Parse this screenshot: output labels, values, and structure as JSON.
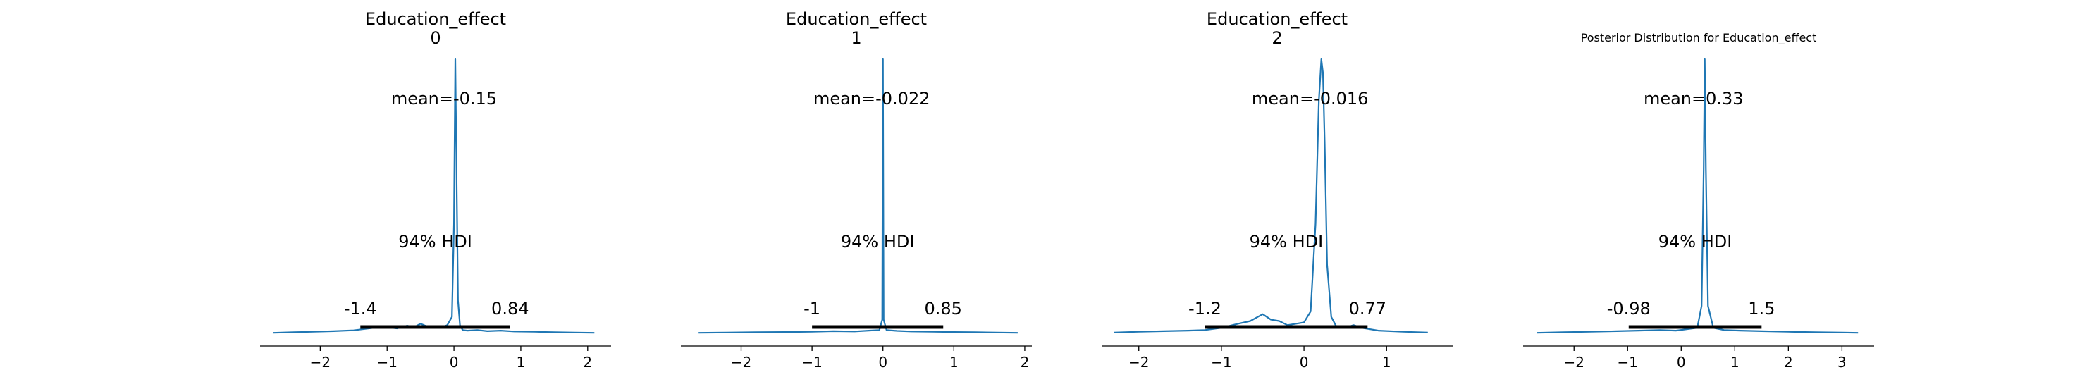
{
  "chart_data": [
    {
      "type": "line",
      "title_lines": [
        "Education_effect",
        "0"
      ],
      "mean_label": "mean=-0.15",
      "hdi_label": "94% HDI",
      "hdi_low_label": "-1.4",
      "hdi_high_label": "0.84",
      "hdi": [
        -1.4,
        0.84
      ],
      "xlim": [
        -2.9,
        2.35
      ],
      "xticks": [
        -2,
        -1,
        0,
        1,
        2
      ],
      "xtick_labels": [
        "−2",
        "−1",
        "0",
        "1",
        "2"
      ],
      "color": "#1f77b4",
      "x": [
        -2.7,
        -2.4,
        -2.1,
        -1.8,
        -1.5,
        -1.2,
        -1.0,
        -0.85,
        -0.7,
        -0.6,
        -0.5,
        -0.4,
        -0.3,
        -0.2,
        -0.1,
        -0.03,
        0.0,
        0.02,
        0.04,
        0.06,
        0.09,
        0.13,
        0.2,
        0.35,
        0.5,
        0.7,
        0.9,
        1.2,
        1.5,
        1.8,
        2.1
      ],
      "y": [
        0.002,
        0.004,
        0.006,
        0.008,
        0.011,
        0.02,
        0.022,
        0.018,
        0.028,
        0.022,
        0.035,
        0.025,
        0.02,
        0.02,
        0.03,
        0.06,
        0.4,
        1.0,
        0.55,
        0.12,
        0.03,
        0.012,
        0.01,
        0.012,
        0.008,
        0.01,
        0.007,
        0.006,
        0.004,
        0.003,
        0.002
      ]
    },
    {
      "type": "line",
      "title_lines": [
        "Education_effect",
        "1"
      ],
      "mean_label": "mean=-0.022",
      "hdi_label": "94% HDI",
      "hdi_low_label": "-1",
      "hdi_high_label": "0.85",
      "hdi": [
        -1.0,
        0.85
      ],
      "xlim": [
        -2.85,
        2.1
      ],
      "xticks": [
        -2,
        -1,
        0,
        1,
        2
      ],
      "xtick_labels": [
        "−2",
        "−1",
        "0",
        "1",
        "2"
      ],
      "color": "#1f77b4",
      "x": [
        -2.6,
        -2.2,
        -1.8,
        -1.4,
        -1.0,
        -0.7,
        -0.4,
        -0.2,
        -0.05,
        -0.01,
        0.0,
        0.01,
        0.05,
        0.2,
        0.4,
        0.7,
        1.0,
        1.3,
        1.6,
        1.9
      ],
      "y": [
        0.002,
        0.003,
        0.004,
        0.005,
        0.006,
        0.008,
        0.007,
        0.01,
        0.012,
        0.05,
        1.0,
        0.05,
        0.012,
        0.009,
        0.007,
        0.006,
        0.005,
        0.004,
        0.003,
        0.002
      ]
    },
    {
      "type": "line",
      "title_lines": [
        "Education_effect",
        "2"
      ],
      "mean_label": "mean=-0.016",
      "hdi_label": "94% HDI",
      "hdi_low_label": "-1.2",
      "hdi_high_label": "0.77",
      "hdi": [
        -1.2,
        0.77
      ],
      "xlim": [
        -2.45,
        1.8
      ],
      "xticks": [
        -2,
        -1,
        0,
        1
      ],
      "xtick_labels": [
        "−2",
        "−1",
        "0",
        "1"
      ],
      "color": "#1f77b4",
      "x": [
        -2.3,
        -2.0,
        -1.7,
        -1.4,
        -1.2,
        -1.0,
        -0.8,
        -0.65,
        -0.5,
        -0.4,
        -0.3,
        -0.2,
        -0.1,
        0.0,
        0.08,
        0.14,
        0.18,
        0.21,
        0.23,
        0.25,
        0.28,
        0.33,
        0.4,
        0.5,
        0.6,
        0.7,
        0.9,
        1.2,
        1.5
      ],
      "y": [
        0.003,
        0.006,
        0.008,
        0.01,
        0.012,
        0.02,
        0.035,
        0.045,
        0.07,
        0.05,
        0.045,
        0.03,
        0.035,
        0.04,
        0.08,
        0.4,
        0.85,
        1.0,
        0.95,
        0.7,
        0.25,
        0.06,
        0.02,
        0.02,
        0.03,
        0.02,
        0.01,
        0.006,
        0.003
      ]
    },
    {
      "type": "line",
      "title": "Posterior Distribution for Education_effect",
      "mean_label": "mean=0.33",
      "hdi_label": "94% HDI",
      "hdi_low_label": "-0.98",
      "hdi_high_label": "1.5",
      "hdi": [
        -0.98,
        1.5
      ],
      "xlim": [
        -2.95,
        3.6
      ],
      "xticks": [
        -2,
        -1,
        0,
        1,
        2,
        3
      ],
      "xtick_labels": [
        "−2",
        "−1",
        "0",
        "1",
        "2",
        "3"
      ],
      "color": "#1f77b4",
      "x": [
        -2.7,
        -2.2,
        -1.7,
        -1.2,
        -0.8,
        -0.4,
        -0.1,
        0.1,
        0.3,
        0.38,
        0.42,
        0.44,
        0.46,
        0.5,
        0.6,
        0.8,
        1.1,
        1.5,
        2.0,
        2.5,
        3.0,
        3.3
      ],
      "y": [
        0.002,
        0.004,
        0.006,
        0.008,
        0.01,
        0.012,
        0.01,
        0.015,
        0.02,
        0.1,
        0.6,
        1.0,
        0.6,
        0.1,
        0.02,
        0.012,
        0.01,
        0.008,
        0.006,
        0.004,
        0.003,
        0.002
      ]
    }
  ]
}
